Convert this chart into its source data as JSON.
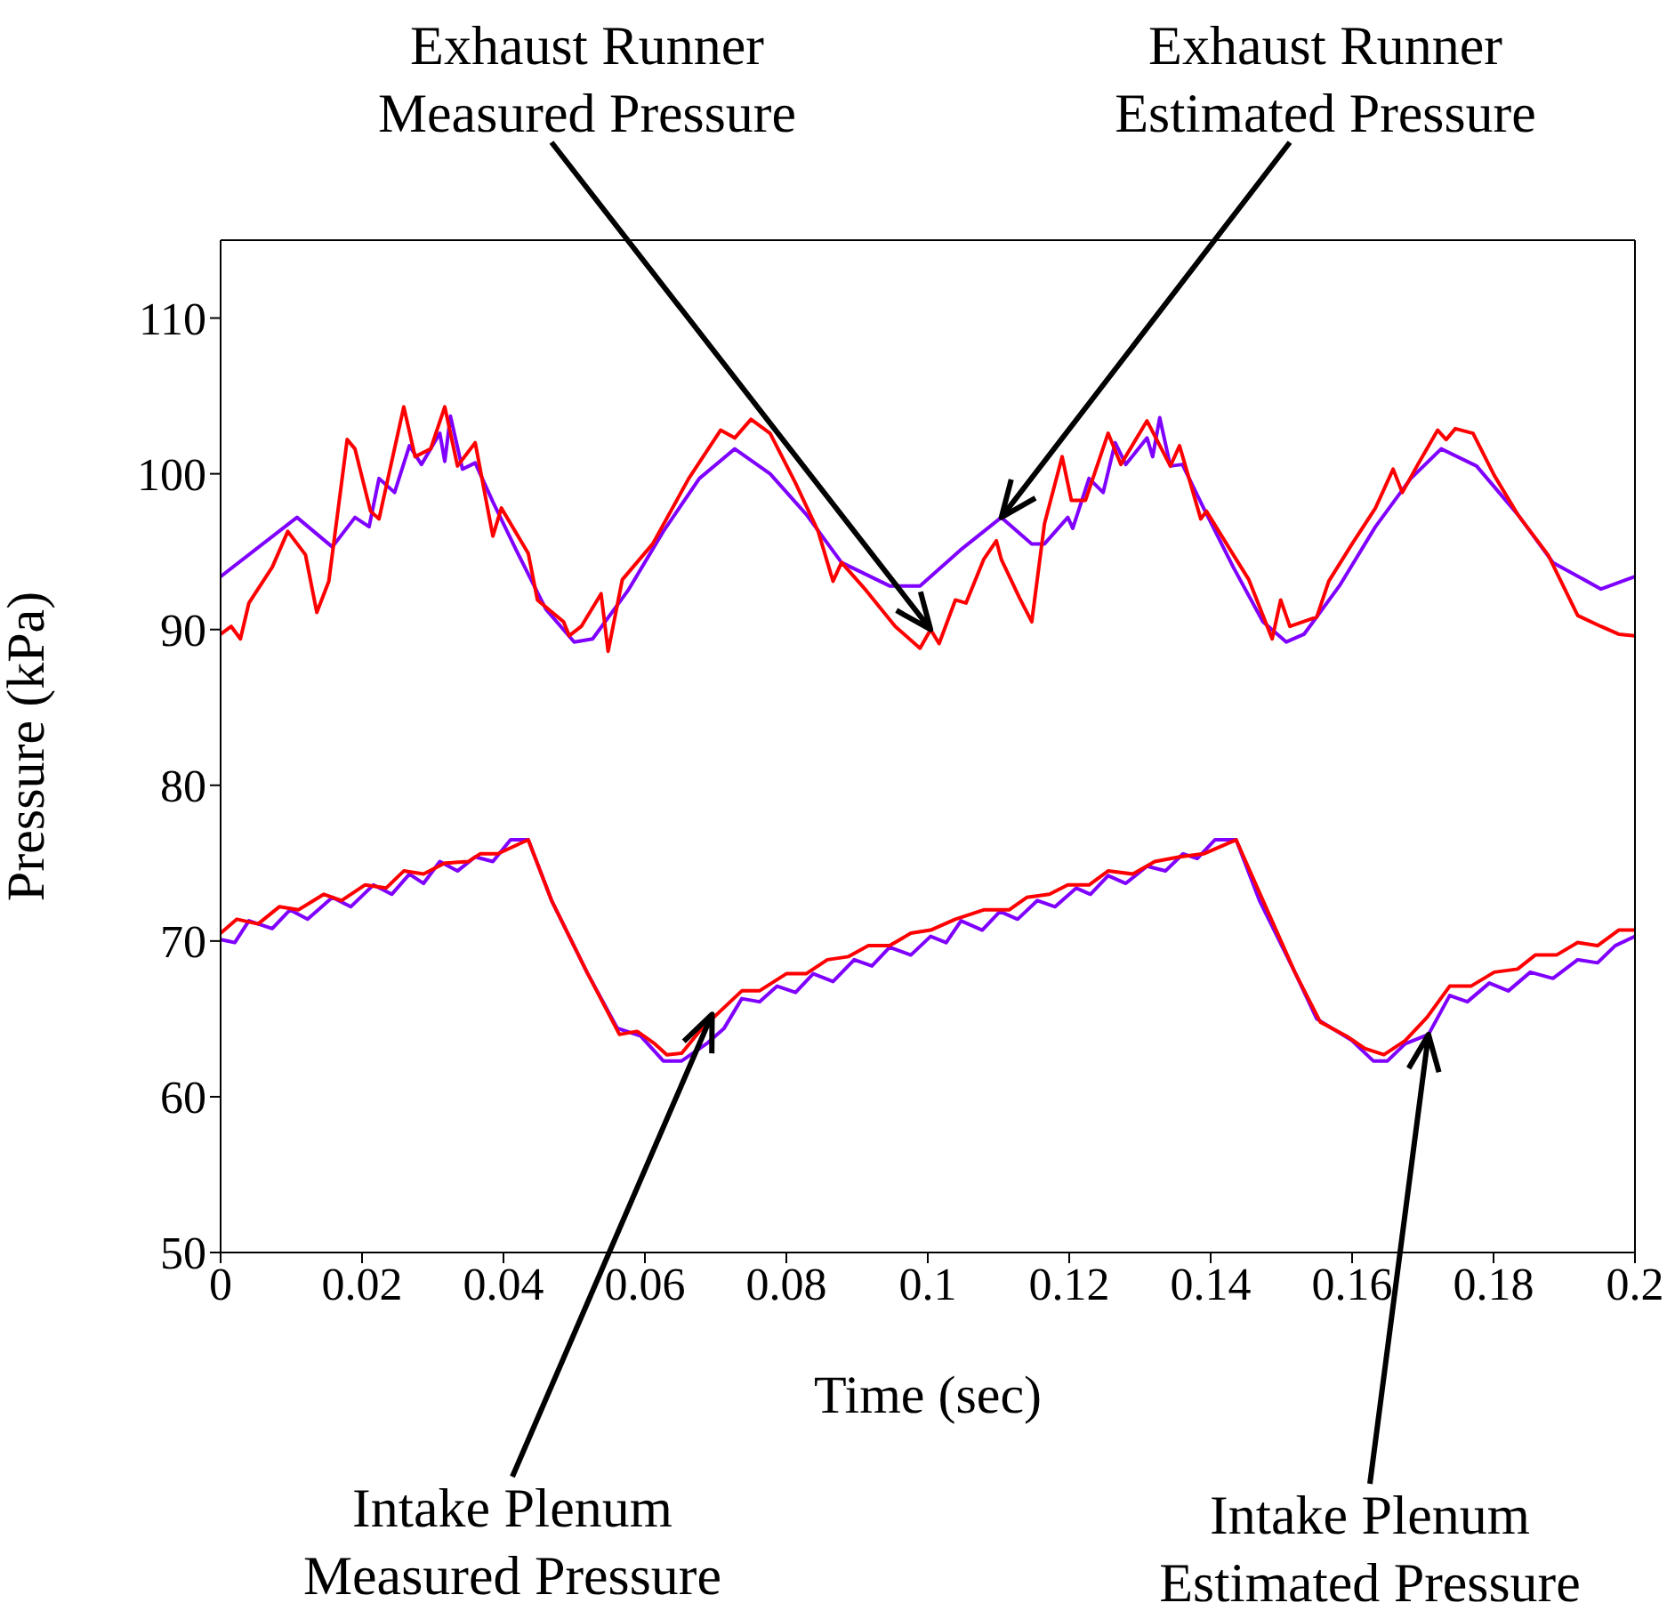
{
  "chart_data": {
    "type": "line",
    "xlabel": "Time (sec)",
    "ylabel": "Pressure (kPa)",
    "xlim": [
      0,
      0.2
    ],
    "ylim": [
      50,
      115
    ],
    "xticks": [
      0,
      0.02,
      0.04,
      0.06,
      0.08,
      0.1,
      0.12,
      0.14,
      0.16,
      0.18,
      0.2
    ],
    "yticks": [
      50,
      60,
      70,
      80,
      90,
      100,
      110
    ],
    "marker": "none",
    "line_style": "solid",
    "series": [
      {
        "color": "#7f00ff",
        "x": [
          0,
          0.0108,
          0.0158,
          0.019,
          0.021,
          0.0224,
          0.0246,
          0.0267,
          0.0284,
          0.031,
          0.0317,
          0.0325,
          0.0342,
          0.036,
          0.0385,
          0.0418,
          0.046,
          0.05,
          0.0526,
          0.0576,
          0.0626,
          0.0677,
          0.0727,
          0.0777,
          0.0828,
          0.0878,
          0.0946,
          0.0989,
          0.1046,
          0.1104,
          0.1147,
          0.1165,
          0.1198,
          0.1205,
          0.1228,
          0.1248,
          0.1265,
          0.128,
          0.131,
          0.1318,
          0.1328,
          0.1343,
          0.136,
          0.139,
          0.1432,
          0.1474,
          0.1507,
          0.1532,
          0.1582,
          0.1633,
          0.1683,
          0.1726,
          0.1776,
          0.1834,
          0.1884,
          0.1952,
          0.2
        ],
        "values": [
          93.4,
          97.2,
          95.3,
          97.2,
          96.6,
          99.7,
          98.8,
          101.8,
          100.6,
          102.6,
          100.8,
          103.7,
          100.3,
          100.7,
          98.2,
          95.1,
          91.3,
          89.2,
          89.4,
          92.5,
          96.3,
          99.7,
          101.6,
          100.0,
          97.4,
          94.3,
          92.8,
          92.8,
          95.1,
          97.2,
          95.5,
          95.5,
          97.2,
          96.5,
          99.7,
          98.8,
          102,
          100.6,
          102.3,
          101.1,
          103.6,
          100.5,
          100.6,
          97.8,
          94,
          90.5,
          89.2,
          89.7,
          92.8,
          96.6,
          99.7,
          101.6,
          100.5,
          97.4,
          94.3,
          92.6,
          93.4
        ]
      },
      {
        "color": "#ff0000",
        "x": [
          0,
          0.0015,
          0.0028,
          0.004,
          0.0073,
          0.0095,
          0.012,
          0.0136,
          0.0153,
          0.0179,
          0.019,
          0.0212,
          0.0224,
          0.0259,
          0.0275,
          0.0297,
          0.0317,
          0.0335,
          0.036,
          0.0385,
          0.0397,
          0.0435,
          0.0448,
          0.0485,
          0.0493,
          0.051,
          0.0538,
          0.0548,
          0.0568,
          0.0611,
          0.0662,
          0.0707,
          0.0727,
          0.075,
          0.0777,
          0.0813,
          0.0845,
          0.0866,
          0.0878,
          0.0913,
          0.0954,
          0.0989,
          0.1004,
          0.1016,
          0.1039,
          0.1054,
          0.1079,
          0.1097,
          0.1104,
          0.113,
          0.1147,
          0.1165,
          0.119,
          0.1203,
          0.1223,
          0.1255,
          0.1273,
          0.131,
          0.1343,
          0.1356,
          0.1386,
          0.1394,
          0.1432,
          0.1454,
          0.1487,
          0.1499,
          0.1512,
          0.155,
          0.1567,
          0.16,
          0.1633,
          0.1658,
          0.1671,
          0.1693,
          0.1721,
          0.1733,
          0.1746,
          0.1771,
          0.1801,
          0.1834,
          0.1877,
          0.1919,
          0.1952,
          0.1977,
          0.2
        ],
        "values": [
          89.7,
          90.2,
          89.4,
          91.7,
          94.0,
          96.3,
          94.8,
          91.1,
          93.1,
          102.2,
          101.6,
          97.6,
          97.1,
          104.3,
          101.1,
          101.6,
          104.3,
          100.5,
          102,
          96,
          97.8,
          94.9,
          91.9,
          90.5,
          89.6,
          90.2,
          92.3,
          88.6,
          93.2,
          95.5,
          99.7,
          102.8,
          102.3,
          103.5,
          102.6,
          99.4,
          96.3,
          93.1,
          94.3,
          92.5,
          90.2,
          88.8,
          90,
          89.1,
          91.9,
          91.7,
          94.5,
          95.7,
          94.5,
          92.0,
          90.5,
          96.8,
          101.1,
          98.3,
          98.3,
          102.6,
          100.6,
          103.4,
          100.5,
          101.8,
          97.1,
          97.6,
          94.8,
          93.2,
          89.4,
          91.9,
          90.2,
          90.8,
          93.1,
          95.5,
          97.8,
          100.3,
          98.8,
          100.6,
          102.8,
          102.2,
          102.9,
          102.6,
          99.9,
          97.4,
          94.8,
          90.9,
          90.2,
          89.7,
          89.6
        ]
      },
      {
        "color": "#7f00ff",
        "x": [
          0,
          0.002,
          0.004,
          0.0073,
          0.0098,
          0.0123,
          0.0158,
          0.0184,
          0.0216,
          0.0242,
          0.0267,
          0.0287,
          0.031,
          0.0335,
          0.036,
          0.0385,
          0.041,
          0.0435,
          0.0468,
          0.0518,
          0.0561,
          0.0594,
          0.0626,
          0.0652,
          0.0687,
          0.0712,
          0.0737,
          0.0762,
          0.0787,
          0.0813,
          0.0838,
          0.0866,
          0.0896,
          0.0921,
          0.0946,
          0.0976,
          0.1004,
          0.1026,
          0.1047,
          0.1077,
          0.1102,
          0.1127,
          0.1155,
          0.118,
          0.121,
          0.123,
          0.1255,
          0.128,
          0.131,
          0.1336,
          0.1361,
          0.1381,
          0.1406,
          0.1436,
          0.1469,
          0.1519,
          0.155,
          0.16,
          0.163,
          0.165,
          0.1675,
          0.1708,
          0.1738,
          0.1763,
          0.1794,
          0.1821,
          0.1852,
          0.1884,
          0.1919,
          0.1947,
          0.1972,
          0.2
        ],
        "values": [
          70.1,
          69.9,
          71.3,
          70.8,
          72,
          71.4,
          72.8,
          72.2,
          73.6,
          73,
          74.3,
          73.7,
          75.1,
          74.5,
          75.4,
          75.1,
          76.5,
          76.5,
          72.6,
          68.0,
          64.4,
          63.9,
          62.3,
          62.3,
          63.4,
          64.4,
          66.3,
          66.1,
          67.1,
          66.7,
          67.9,
          67.4,
          68.8,
          68.4,
          69.6,
          69.1,
          70.3,
          69.9,
          71.3,
          70.7,
          71.9,
          71.4,
          72.6,
          72.2,
          73.4,
          73,
          74.2,
          73.7,
          74.8,
          74.5,
          75.6,
          75.3,
          76.5,
          76.5,
          72.6,
          68,
          65,
          63.6,
          62.3,
          62.3,
          63.4,
          64,
          66.5,
          66.1,
          67.3,
          66.8,
          68,
          67.6,
          68.8,
          68.6,
          69.7,
          70.3
        ]
      },
      {
        "color": "#ff0000",
        "x": [
          0,
          0.0023,
          0.0053,
          0.0083,
          0.011,
          0.0146,
          0.0171,
          0.0204,
          0.0234,
          0.0259,
          0.0287,
          0.0317,
          0.035,
          0.0367,
          0.0392,
          0.0435,
          0.0468,
          0.0518,
          0.0564,
          0.0589,
          0.0614,
          0.0631,
          0.0652,
          0.0677,
          0.0702,
          0.0737,
          0.0762,
          0.08,
          0.0828,
          0.0858,
          0.0888,
          0.0916,
          0.0946,
          0.0976,
          0.1004,
          0.1039,
          0.1079,
          0.1115,
          0.114,
          0.1172,
          0.1198,
          0.1228,
          0.1255,
          0.129,
          0.1321,
          0.1356,
          0.139,
          0.1436,
          0.1474,
          0.1519,
          0.1555,
          0.1592,
          0.1618,
          0.1645,
          0.1675,
          0.1706,
          0.1738,
          0.1768,
          0.1801,
          0.1834,
          0.1859,
          0.1889,
          0.1919,
          0.1947,
          0.1977,
          0.2
        ],
        "values": [
          70.5,
          71.4,
          71.1,
          72.2,
          72,
          73,
          72.6,
          73.6,
          73.4,
          74.5,
          74.3,
          75,
          75.1,
          75.6,
          75.6,
          76.5,
          72.6,
          68,
          64,
          64.2,
          63.4,
          62.7,
          62.8,
          64.2,
          65.3,
          66.8,
          66.8,
          67.9,
          67.9,
          68.8,
          69,
          69.7,
          69.7,
          70.5,
          70.7,
          71.4,
          72,
          72,
          72.8,
          73,
          73.6,
          73.6,
          74.5,
          74.3,
          75.1,
          75.4,
          75.6,
          76.5,
          72.6,
          68,
          64.8,
          63.9,
          63.1,
          62.7,
          63.6,
          65.1,
          67.1,
          67.1,
          68,
          68.2,
          69.1,
          69.1,
          69.9,
          69.7,
          70.7,
          70.7
        ]
      }
    ],
    "annotations": [
      {
        "text": "Exhaust Runner\nMeasured Pressure",
        "x": 0.1004,
        "y": 90
      },
      {
        "text": "Exhaust Runner\nEstimated Pressure",
        "x": 0.1104,
        "y": 97.2
      },
      {
        "text": "Intake Plenum\nMeasured Pressure",
        "x": 0.0695,
        "y": 65.3
      },
      {
        "text": "Intake Plenum\nEstimated Pressure",
        "x": 0.1708,
        "y": 64
      }
    ]
  }
}
